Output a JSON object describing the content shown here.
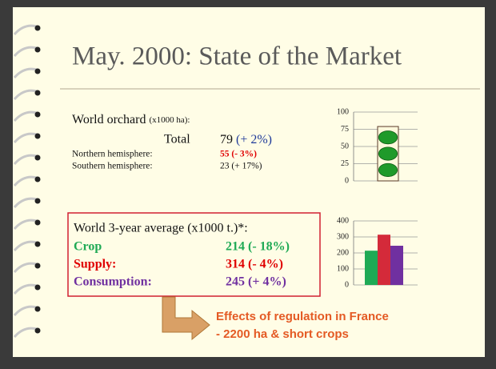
{
  "title": "May. 2000: State of the Market",
  "orchard": {
    "label": "World orchard",
    "unit": "(x1000 ha):",
    "total": {
      "label": "Total",
      "value": "79",
      "change": "(+ 2%)"
    },
    "rows": [
      [
        "Northern hemisphere:",
        "55 (- 3%)"
      ],
      [
        "Southern hemisphere:",
        "23 (+ 17%)"
      ]
    ]
  },
  "average": {
    "label": "World 3-year average (x1000 t.)*:",
    "rows": [
      [
        "Crop",
        "214 (- 18%)"
      ],
      [
        "Supply:",
        "314 (- 4%)"
      ],
      [
        "Consumption:",
        "245 (+ 4%)"
      ]
    ]
  },
  "callout": [
    "Effects of regulation in France",
    "- 2200 ha & short crops"
  ],
  "chart_data": [
    {
      "type": "bar",
      "values": [
        79
      ],
      "colors": [
        "#fdf9dc"
      ],
      "ylim": [
        0,
        100
      ],
      "yticks": [
        0,
        25,
        50,
        75,
        100
      ],
      "grid": true
    },
    {
      "type": "bar",
      "values": [
        214,
        314,
        245
      ],
      "colors": [
        "#1faa55",
        "#d42a3a",
        "#7030a0"
      ],
      "ylim": [
        0,
        400
      ],
      "yticks": [
        0,
        100,
        200,
        300,
        400
      ],
      "grid": true
    }
  ]
}
